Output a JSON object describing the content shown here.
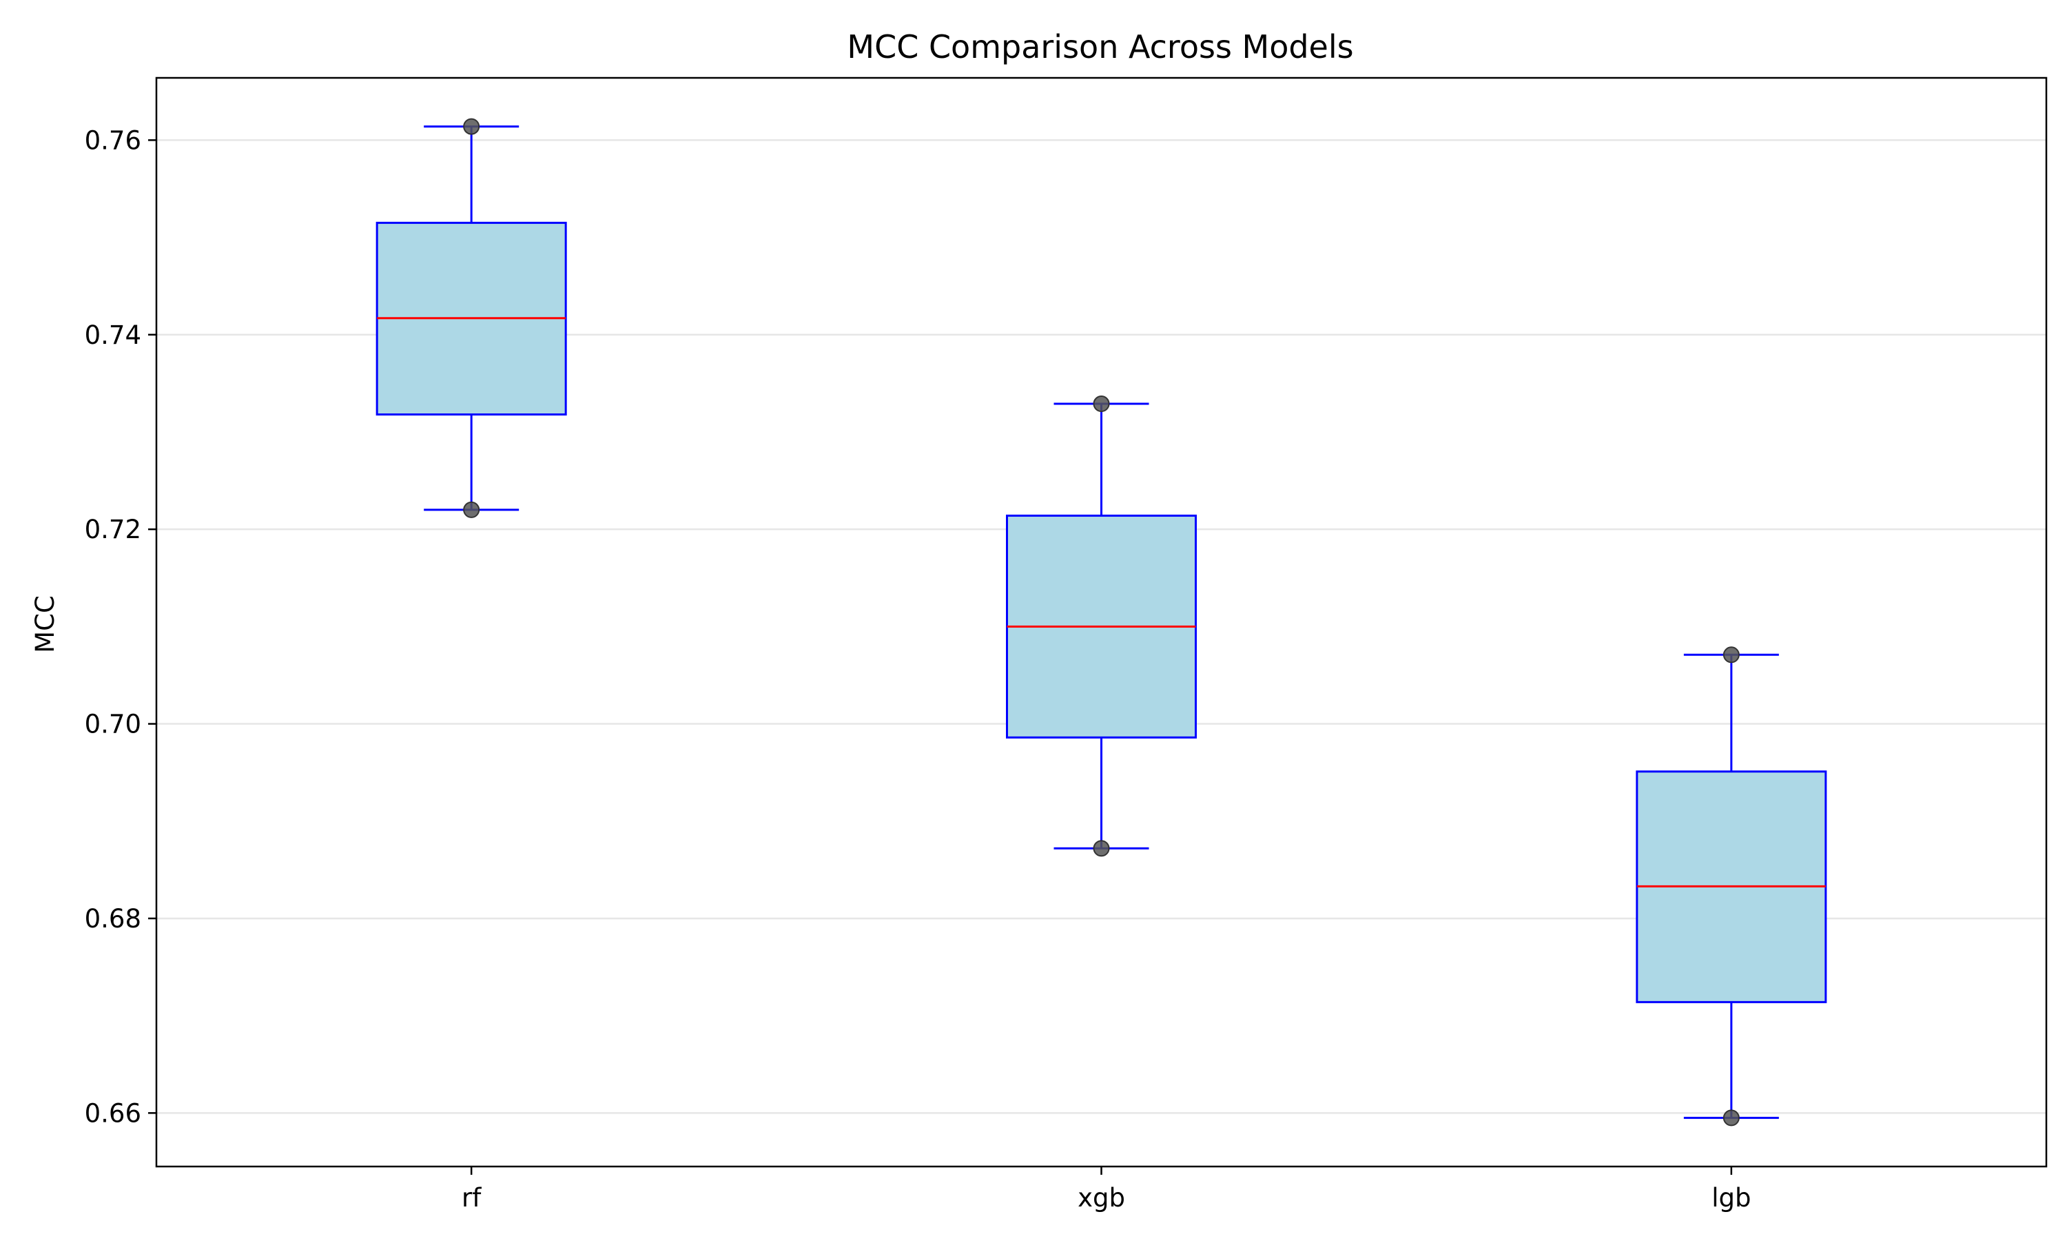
{
  "chart_data": {
    "type": "box",
    "title": "MCC Comparison Across Models",
    "xlabel": "",
    "ylabel": "MCC",
    "categories": [
      "rf",
      "xgb",
      "lgb"
    ],
    "boxes": [
      {
        "category": "rf",
        "whisker_low": 0.722,
        "q1": 0.7318,
        "median": 0.7417,
        "q3": 0.7515,
        "whisker_high": 0.7614,
        "points": [
          0.7614,
          0.722
        ]
      },
      {
        "category": "xgb",
        "whisker_low": 0.6872,
        "q1": 0.6986,
        "median": 0.71,
        "q3": 0.7214,
        "whisker_high": 0.7329,
        "points": [
          0.7329,
          0.6872
        ]
      },
      {
        "category": "lgb",
        "whisker_low": 0.6595,
        "q1": 0.6714,
        "median": 0.6833,
        "q3": 0.6951,
        "whisker_high": 0.7071,
        "points": [
          0.7071,
          0.6595
        ]
      }
    ],
    "ylim": [
      0.6545,
      0.7664
    ],
    "yticks": [
      0.66,
      0.68,
      0.7,
      0.72,
      0.74,
      0.76
    ],
    "ytick_labels": [
      "0.66",
      "0.68",
      "0.70",
      "0.72",
      "0.74",
      "0.76"
    ],
    "grid": {
      "y": true,
      "x": false
    },
    "colors": {
      "box_fill": "#add8e6",
      "box_edge": "#0000ff",
      "median": "#ff0000",
      "whisker": "#0000ff",
      "point": "#555555",
      "grid": "#e6e6e6",
      "axes": "#000000"
    }
  }
}
